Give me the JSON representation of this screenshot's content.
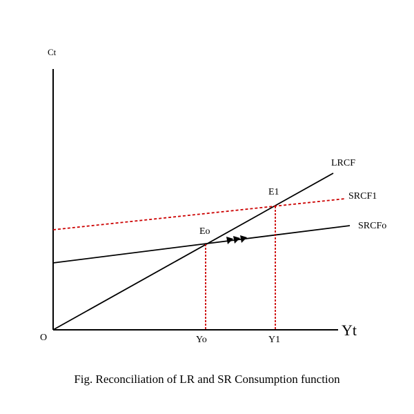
{
  "diagram": {
    "y_axis_label": "Ct",
    "x_axis_label": "Yt",
    "origin_label": "O",
    "lines": {
      "lrcf": "LRCF",
      "srcf1": "SRCF1",
      "srcf0": "SRCFo"
    },
    "points": {
      "e0": "Eo",
      "e1": "E1"
    },
    "x_ticks": {
      "y0": "Yo",
      "y1": "Y1"
    },
    "colors": {
      "axis": "#000000",
      "solid_line": "#000000",
      "dashed_line": "#cc0000"
    }
  },
  "caption": "Fig. Reconciliation of LR and SR Consumption function"
}
